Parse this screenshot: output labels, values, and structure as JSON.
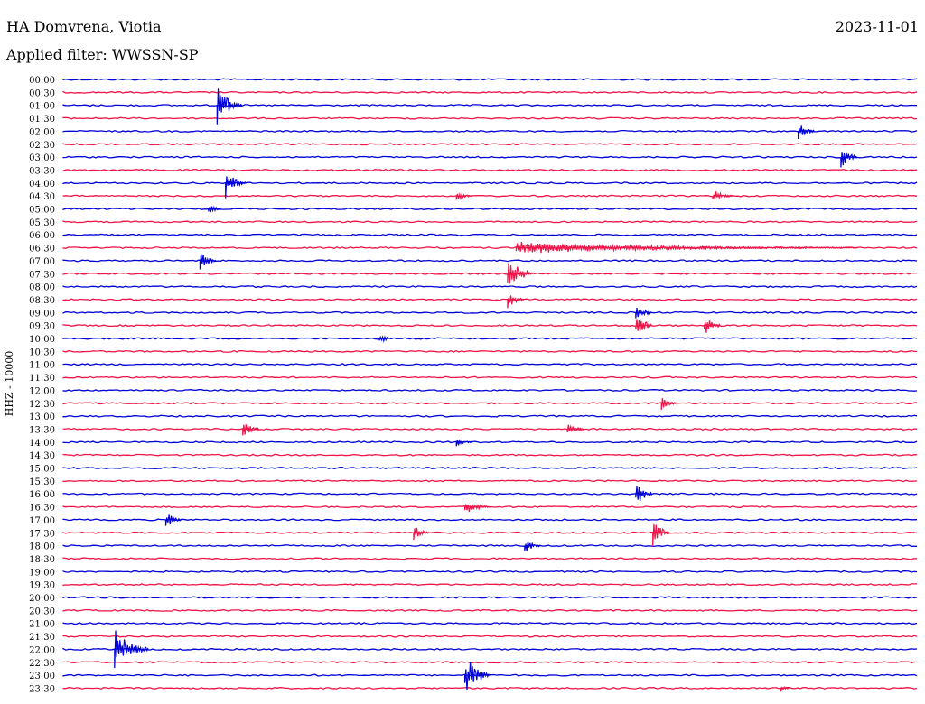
{
  "header": {
    "station": "HA Domvrena, Viotia",
    "date": "2023-11-01",
    "filter_label": "Applied filter: WWSSN-SP"
  },
  "chart_data": {
    "type": "line",
    "title": "HA Domvrena, Viotia",
    "ylabel": "HHZ - 10000",
    "colors": [
      "#0000d8",
      "#f01448"
    ],
    "row_labels": [
      "00:00",
      "00:30",
      "01:00",
      "01:30",
      "02:00",
      "02:30",
      "03:00",
      "03:30",
      "04:00",
      "04:30",
      "05:00",
      "05:30",
      "06:00",
      "06:30",
      "07:00",
      "07:30",
      "08:00",
      "08:30",
      "09:00",
      "09:30",
      "10:00",
      "10:30",
      "11:00",
      "11:30",
      "12:00",
      "12:30",
      "13:00",
      "13:30",
      "14:00",
      "14:30",
      "15:00",
      "15:30",
      "16:00",
      "16:30",
      "17:00",
      "17:30",
      "18:00",
      "18:30",
      "19:00",
      "19:30",
      "20:00",
      "20:30",
      "21:00",
      "21:30",
      "22:00",
      "22:30",
      "23:00",
      "23:30"
    ],
    "events": [
      {
        "row": 2,
        "x": 0.18,
        "amp": 22,
        "len": 0.03
      },
      {
        "row": 4,
        "x": 0.86,
        "amp": 10,
        "len": 0.02
      },
      {
        "row": 6,
        "x": 0.91,
        "amp": 14,
        "len": 0.02
      },
      {
        "row": 8,
        "x": 0.19,
        "amp": 18,
        "len": 0.025
      },
      {
        "row": 9,
        "x": 0.46,
        "amp": 5,
        "len": 0.02
      },
      {
        "row": 9,
        "x": 0.76,
        "amp": 8,
        "len": 0.025
      },
      {
        "row": 10,
        "x": 0.17,
        "amp": 6,
        "len": 0.015
      },
      {
        "row": 13,
        "x": 0.53,
        "amp": 7,
        "len": 0.4
      },
      {
        "row": 14,
        "x": 0.16,
        "amp": 11,
        "len": 0.02
      },
      {
        "row": 15,
        "x": 0.52,
        "amp": 22,
        "len": 0.03
      },
      {
        "row": 17,
        "x": 0.52,
        "amp": 10,
        "len": 0.02
      },
      {
        "row": 18,
        "x": 0.67,
        "amp": 12,
        "len": 0.02
      },
      {
        "row": 19,
        "x": 0.67,
        "amp": 18,
        "len": 0.02
      },
      {
        "row": 19,
        "x": 0.75,
        "amp": 12,
        "len": 0.02
      },
      {
        "row": 20,
        "x": 0.37,
        "amp": 6,
        "len": 0.015
      },
      {
        "row": 25,
        "x": 0.7,
        "amp": 8,
        "len": 0.02
      },
      {
        "row": 27,
        "x": 0.21,
        "amp": 11,
        "len": 0.02
      },
      {
        "row": 27,
        "x": 0.59,
        "amp": 7,
        "len": 0.02
      },
      {
        "row": 28,
        "x": 0.46,
        "amp": 5,
        "len": 0.02
      },
      {
        "row": 32,
        "x": 0.67,
        "amp": 16,
        "len": 0.02
      },
      {
        "row": 33,
        "x": 0.47,
        "amp": 9,
        "len": 0.03
      },
      {
        "row": 34,
        "x": 0.12,
        "amp": 10,
        "len": 0.02
      },
      {
        "row": 35,
        "x": 0.41,
        "amp": 11,
        "len": 0.02
      },
      {
        "row": 35,
        "x": 0.69,
        "amp": 18,
        "len": 0.02
      },
      {
        "row": 36,
        "x": 0.54,
        "amp": 8,
        "len": 0.02
      },
      {
        "row": 44,
        "x": 0.06,
        "amp": 24,
        "len": 0.04
      },
      {
        "row": 46,
        "x": 0.47,
        "amp": 26,
        "len": 0.03
      },
      {
        "row": 47,
        "x": 0.84,
        "amp": 4,
        "len": 0.01
      }
    ]
  }
}
